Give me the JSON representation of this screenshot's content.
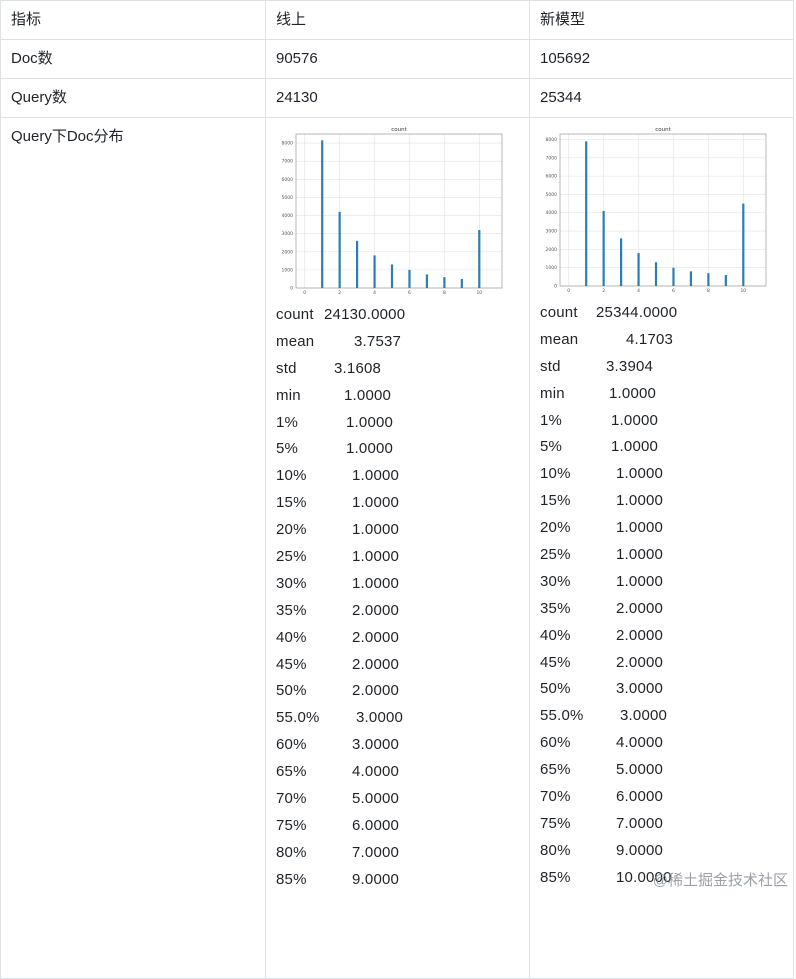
{
  "table": {
    "header": [
      "指标",
      "线上",
      "新模型"
    ],
    "rows": [
      {
        "label": "Doc数",
        "online": "90576",
        "new": "105692"
      },
      {
        "label": "Query数",
        "online": "24130",
        "new": "25344"
      }
    ],
    "dist_label": "Query下Doc分布"
  },
  "stats_online": [
    {
      "k": "count",
      "v": "24130.0000"
    },
    {
      "k": "mean",
      "v": "3.7537"
    },
    {
      "k": "std",
      "v": "3.1608"
    },
    {
      "k": "min",
      "v": "1.0000"
    },
    {
      "k": "1%",
      "v": "1.0000"
    },
    {
      "k": "5%",
      "v": "1.0000"
    },
    {
      "k": "10%",
      "v": "1.0000"
    },
    {
      "k": "15%",
      "v": "1.0000"
    },
    {
      "k": "20%",
      "v": "1.0000"
    },
    {
      "k": "25%",
      "v": "1.0000"
    },
    {
      "k": "30%",
      "v": "1.0000"
    },
    {
      "k": "35%",
      "v": "2.0000"
    },
    {
      "k": "40%",
      "v": "2.0000"
    },
    {
      "k": "45%",
      "v": "2.0000"
    },
    {
      "k": "50%",
      "v": "2.0000"
    },
    {
      "k": "55.0%",
      "v": "3.0000"
    },
    {
      "k": "60%",
      "v": "3.0000"
    },
    {
      "k": "65%",
      "v": "4.0000"
    },
    {
      "k": "70%",
      "v": "5.0000"
    },
    {
      "k": "75%",
      "v": "6.0000"
    },
    {
      "k": "80%",
      "v": "7.0000"
    },
    {
      "k": "85%",
      "v": "9.0000"
    }
  ],
  "stats_new": [
    {
      "k": "count",
      "v": "25344.0000"
    },
    {
      "k": "mean",
      "v": "4.1703"
    },
    {
      "k": "std",
      "v": "3.3904"
    },
    {
      "k": "min",
      "v": "1.0000"
    },
    {
      "k": "1%",
      "v": "1.0000"
    },
    {
      "k": "5%",
      "v": "1.0000"
    },
    {
      "k": "10%",
      "v": "1.0000"
    },
    {
      "k": "15%",
      "v": "1.0000"
    },
    {
      "k": "20%",
      "v": "1.0000"
    },
    {
      "k": "25%",
      "v": "1.0000"
    },
    {
      "k": "30%",
      "v": "1.0000"
    },
    {
      "k": "35%",
      "v": "2.0000"
    },
    {
      "k": "40%",
      "v": "2.0000"
    },
    {
      "k": "45%",
      "v": "2.0000"
    },
    {
      "k": "50%",
      "v": "3.0000"
    },
    {
      "k": "55.0%",
      "v": "3.0000"
    },
    {
      "k": "60%",
      "v": "4.0000"
    },
    {
      "k": "65%",
      "v": "5.0000"
    },
    {
      "k": "70%",
      "v": "6.0000"
    },
    {
      "k": "75%",
      "v": "7.0000"
    },
    {
      "k": "80%",
      "v": "9.0000"
    },
    {
      "k": "85%",
      "v": "10.0000"
    }
  ],
  "watermark": "@稀土掘金技术社区",
  "chart_data": [
    {
      "type": "bar",
      "title": "count",
      "x": [
        1,
        2,
        3,
        4,
        5,
        6,
        7,
        8,
        9,
        10
      ],
      "values": [
        8150,
        4200,
        2600,
        1800,
        1300,
        1000,
        750,
        600,
        500,
        3200
      ],
      "xlim": [
        0,
        10
      ],
      "ylim": [
        0,
        8500
      ],
      "xticks": [
        "0",
        "2",
        "4",
        "6",
        "8",
        "10"
      ],
      "yticks": [
        "0",
        "1000",
        "2000",
        "3000",
        "4000",
        "5000",
        "6000",
        "7000",
        "8000"
      ],
      "grid": true,
      "color": "#2a7fb0"
    },
    {
      "type": "bar",
      "title": "count",
      "x": [
        1,
        2,
        3,
        4,
        5,
        6,
        7,
        8,
        9,
        10
      ],
      "values": [
        7900,
        4100,
        2600,
        1800,
        1300,
        1000,
        800,
        700,
        600,
        4500
      ],
      "xlim": [
        0,
        10
      ],
      "ylim": [
        0,
        8300
      ],
      "xticks": [
        "0",
        "2",
        "4",
        "6",
        "8",
        "10"
      ],
      "yticks": [
        "0",
        "1000",
        "2000",
        "3000",
        "4000",
        "5000",
        "6000",
        "7000",
        "8000"
      ],
      "grid": true,
      "color": "#2a7fb0"
    }
  ]
}
